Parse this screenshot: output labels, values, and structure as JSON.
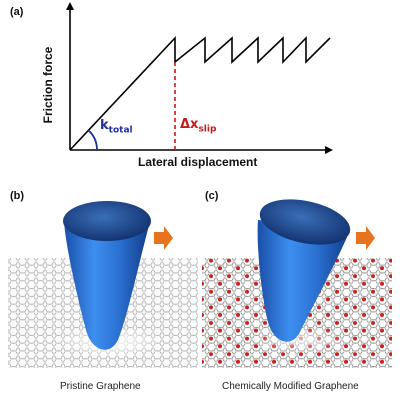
{
  "figure": {
    "panel_a": {
      "label": "(a)",
      "y_axis_label": "Friction force",
      "x_axis_label": "Lateral displacement",
      "k_symbol": "k",
      "k_subscript": "total",
      "dx_symbol": "Δx",
      "dx_subscript": "slip",
      "k_color": "#1e2fa0",
      "dx_color": "#c41b1b"
    },
    "panel_b": {
      "label": "(b)",
      "caption": "Pristine Graphene"
    },
    "panel_c": {
      "label": "(c)",
      "caption": "Chemically Modified Graphene"
    },
    "colors": {
      "tip": "#2f7fe0",
      "arrow": "#e8731e",
      "carbon": "#c8c8c8",
      "oxygen": "#cc1f1f"
    }
  }
}
